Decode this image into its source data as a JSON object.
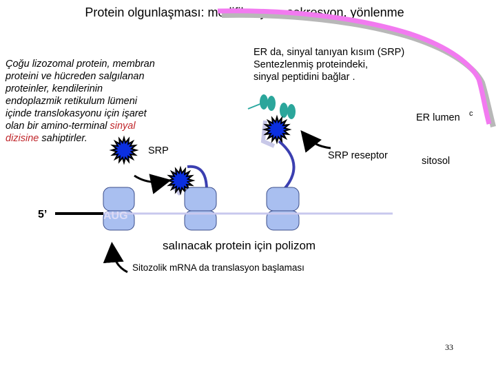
{
  "header": {
    "title": "Protein olgunlaşması: modifikasyon, sekresyon, yönlenme"
  },
  "intro": {
    "lines": [
      "Çoğu lizozomal protein, membran",
      "proteini ve hücreden salgılanan",
      "proteinler, kendilerinin",
      "endoplazmik retikulum lümeni",
      "içinde translokasyonu için işaret"
    ],
    "line6": "olan bir amino-terminal",
    "signal_1": "sinyal",
    "signal_2": "dizisine",
    "ending": "sahiptirler."
  },
  "srp_label": "SRP",
  "er_note": {
    "lines": [
      "ER da, sinyal tanıyan kısım (SRP)",
      "Sentezlenmiş proteindeki,",
      "sinyal peptidini bağlar ."
    ]
  },
  "er_lumen": {
    "label": "ER lumen",
    "mark": "c"
  },
  "srp_receptor": "SRP reseptor",
  "cytosol": "sitosol",
  "mrna": {
    "five_prime": "5’",
    "start_codon": "AUG"
  },
  "polysome": "salınacak protein için polizom",
  "initiation": "Sitozolik mRNA da translasyon başlaması",
  "page_number": "33"
}
